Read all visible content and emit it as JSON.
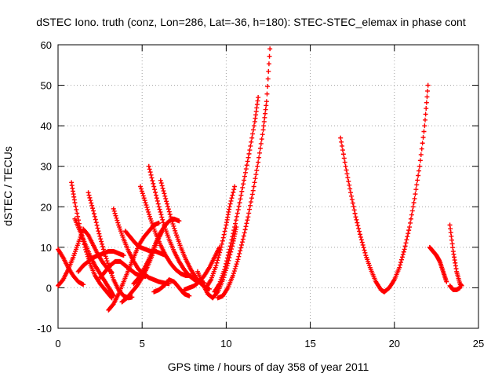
{
  "chart_data": {
    "type": "scatter",
    "title": "dSTEC Iono. truth (conz, Lon=286, Lat=-36, h=180): STEC-STEC_elemax in phase cont",
    "xlabel": "GPS time / hours of day 358 of year 2011",
    "ylabel": "dSTEC  / TECUs",
    "xlim": [
      0,
      25
    ],
    "ylim": [
      -10,
      60
    ],
    "xticks": [
      0,
      5,
      10,
      15,
      20,
      25
    ],
    "yticks": [
      -10,
      0,
      10,
      20,
      30,
      40,
      50,
      60
    ],
    "xtick_labels": [
      "0",
      "5",
      "10",
      "15",
      "20",
      "25"
    ],
    "ytick_labels": [
      "-10",
      "0",
      "10",
      "20",
      "30",
      "40",
      "50",
      "60"
    ],
    "grid": true,
    "marker": "+",
    "series_color": "#ff0000",
    "series": [
      {
        "x": [
          0.0,
          0.3,
          0.6,
          0.9,
          1.2,
          1.5
        ],
        "y": [
          9.5,
          7.5,
          5.0,
          3.0,
          1.5,
          0.8
        ]
      },
      {
        "x": [
          0.0,
          0.3,
          0.6,
          0.9,
          1.2,
          1.5,
          1.8,
          2.1,
          2.4,
          2.7,
          3.0,
          3.2
        ],
        "y": [
          0.5,
          2.0,
          4.5,
          7.5,
          11.0,
          14.5,
          13.0,
          10.5,
          8.0,
          6.0,
          4.5,
          3.8
        ]
      },
      {
        "x": [
          0.8,
          1.0,
          1.3,
          1.6,
          1.9,
          2.2,
          2.5,
          2.8,
          3.0,
          3.2
        ],
        "y": [
          26.0,
          21.0,
          15.0,
          10.0,
          6.0,
          3.0,
          1.0,
          -0.5,
          -1.5,
          -2.5
        ]
      },
      {
        "x": [
          1.0,
          1.3,
          1.6,
          1.9,
          2.2,
          2.5,
          2.8,
          3.1,
          3.3
        ],
        "y": [
          17.0,
          14.0,
          11.0,
          8.0,
          5.5,
          3.5,
          1.5,
          -0.5,
          -2.0
        ]
      },
      {
        "x": [
          1.2,
          1.5,
          1.8,
          2.1,
          2.4,
          2.7,
          3.0,
          3.3,
          3.6,
          3.9
        ],
        "y": [
          4.0,
          5.5,
          6.5,
          7.5,
          8.0,
          8.5,
          9.0,
          9.0,
          8.5,
          8.0
        ]
      },
      {
        "x": [
          1.8,
          2.1,
          2.4,
          2.7,
          3.0,
          3.3,
          3.6,
          3.9,
          4.2,
          4.4
        ],
        "y": [
          23.5,
          19.0,
          14.0,
          9.5,
          5.5,
          2.0,
          -0.5,
          -2.0,
          -2.5,
          -2.3
        ]
      },
      {
        "x": [
          2.5,
          2.8,
          3.1,
          3.4,
          3.7,
          4.0,
          4.3,
          4.6,
          4.9,
          5.2
        ],
        "y": [
          2.5,
          4.0,
          5.5,
          6.5,
          6.5,
          5.5,
          4.5,
          3.5,
          3.0,
          2.8
        ]
      },
      {
        "x": [
          3.0,
          3.3,
          3.6,
          3.9,
          4.2,
          4.5,
          4.8,
          5.1,
          5.4,
          5.7,
          6.0
        ],
        "y": [
          -5.5,
          -4.0,
          -1.5,
          1.5,
          4.5,
          7.5,
          10.5,
          12.5,
          14.0,
          15.5,
          16.0
        ]
      },
      {
        "x": [
          3.3,
          3.6,
          3.9,
          4.2,
          4.5,
          4.8,
          5.1,
          5.4,
          5.7,
          6.0,
          6.3,
          6.6
        ],
        "y": [
          19.5,
          15.5,
          12.0,
          9.0,
          6.5,
          4.5,
          3.5,
          2.5,
          2.0,
          1.5,
          1.2,
          1.0
        ]
      },
      {
        "x": [
          3.8,
          4.1,
          4.4,
          4.7,
          5.0,
          5.3,
          5.6,
          5.9,
          6.2
        ],
        "y": [
          -3.5,
          -2.5,
          -1.0,
          0.5,
          2.5,
          5.0,
          8.0,
          11.5,
          14.0
        ]
      },
      {
        "x": [
          4.0,
          4.3,
          4.6,
          4.9,
          5.2,
          5.5,
          5.8,
          6.1,
          6.4
        ],
        "y": [
          14.0,
          12.5,
          11.0,
          10.0,
          9.5,
          9.0,
          9.0,
          8.5,
          8.0
        ]
      },
      {
        "x": [
          4.5,
          4.8,
          5.1,
          5.4,
          5.7,
          6.0,
          6.3,
          6.6,
          6.9,
          7.2
        ],
        "y": [
          1.0,
          2.5,
          4.5,
          7.0,
          10.0,
          13.0,
          15.0,
          16.5,
          17.0,
          16.5
        ]
      },
      {
        "x": [
          4.9,
          5.2,
          5.5,
          5.8,
          6.1,
          6.4,
          6.7,
          7.0,
          7.3,
          7.6,
          7.9
        ],
        "y": [
          25.0,
          21.0,
          17.0,
          13.5,
          10.5,
          8.0,
          6.0,
          4.5,
          3.5,
          3.0,
          3.0
        ]
      },
      {
        "x": [
          5.4,
          5.7,
          6.0,
          6.3,
          6.6,
          6.9,
          7.2,
          7.5,
          7.8,
          8.1,
          8.4,
          8.7
        ],
        "y": [
          30.0,
          25.0,
          20.0,
          15.5,
          12.0,
          9.0,
          6.5,
          4.5,
          3.0,
          2.0,
          1.5,
          1.2
        ]
      },
      {
        "x": [
          6.1,
          6.4,
          6.7,
          7.0,
          7.3,
          7.6,
          7.9,
          8.2,
          8.5,
          8.8,
          9.0
        ],
        "y": [
          26.5,
          22.0,
          17.5,
          13.5,
          10.0,
          7.0,
          4.5,
          2.5,
          1.0,
          0.0,
          -0.3
        ]
      },
      {
        "x": [
          5.7,
          6.0,
          6.3,
          6.6,
          6.9,
          7.2,
          7.5,
          7.8
        ],
        "y": [
          -1.0,
          -0.5,
          0.5,
          2.0,
          1.5,
          0.0,
          -1.5,
          -2.0
        ]
      },
      {
        "x": [
          7.5,
          7.8,
          8.1,
          8.4,
          8.7,
          9.0,
          9.3,
          9.6
        ],
        "y": [
          -0.5,
          0.0,
          0.5,
          1.5,
          3.0,
          5.0,
          7.5,
          10.0
        ]
      },
      {
        "x": [
          8.3,
          8.6,
          8.9,
          9.2,
          9.5,
          9.8,
          10.1,
          10.4,
          10.6
        ],
        "y": [
          4.0,
          1.0,
          -1.5,
          -2.5,
          -1.0,
          2.0,
          6.0,
          11.0,
          15.0
        ]
      },
      {
        "x": [
          8.8,
          9.1,
          9.4,
          9.7,
          10.0,
          10.2,
          10.5
        ],
        "y": [
          0.0,
          2.0,
          5.5,
          10.0,
          15.5,
          20.0,
          25.0
        ]
      },
      {
        "x": [
          9.3,
          9.6,
          9.9,
          10.2,
          10.5,
          10.8,
          11.1,
          11.4,
          11.7,
          11.9
        ],
        "y": [
          -1.0,
          1.0,
          4.5,
          9.5,
          15.0,
          21.0,
          27.5,
          34.0,
          41.0,
          47.0
        ]
      },
      {
        "x": [
          9.5,
          9.8,
          10.1,
          10.4,
          10.7,
          11.0,
          11.3,
          11.6,
          11.9,
          12.2,
          12.4,
          12.6
        ],
        "y": [
          -2.5,
          -2.0,
          0.0,
          3.0,
          7.0,
          12.0,
          17.5,
          24.0,
          31.0,
          39.0,
          46.0,
          59.0
        ]
      },
      {
        "x": [
          16.8,
          17.1,
          17.4,
          17.7,
          18.0,
          18.3,
          18.6,
          18.9,
          19.2,
          19.4
        ],
        "y": [
          37.0,
          30.0,
          23.5,
          17.5,
          12.5,
          8.0,
          4.5,
          1.5,
          -0.5,
          -1.0
        ]
      },
      {
        "x": [
          19.4,
          19.7,
          20.0,
          20.3,
          20.6,
          20.9,
          21.2,
          21.5,
          21.8,
          22.0
        ],
        "y": [
          -1.0,
          0.0,
          2.0,
          5.0,
          9.5,
          15.0,
          22.0,
          30.0,
          40.0,
          50.0
        ]
      },
      {
        "x": [
          22.1,
          22.3,
          22.5,
          22.7,
          22.9,
          23.1
        ],
        "y": [
          10.0,
          9.0,
          8.0,
          6.5,
          4.0,
          1.5
        ]
      },
      {
        "x": [
          23.3,
          23.5,
          23.7,
          23.9,
          24.0
        ],
        "y": [
          15.5,
          9.0,
          4.0,
          1.0,
          0.5
        ]
      },
      {
        "x": [
          23.3,
          23.5,
          23.7,
          23.9
        ],
        "y": [
          0.5,
          -0.5,
          -0.5,
          0.0
        ]
      }
    ]
  }
}
